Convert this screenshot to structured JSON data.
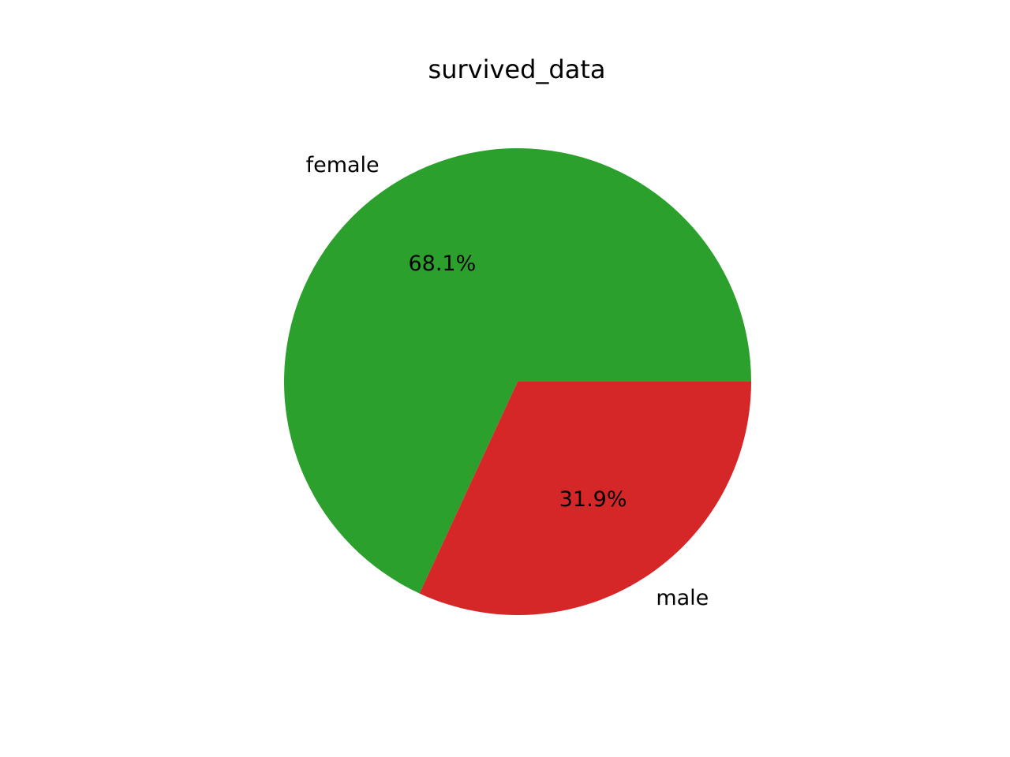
{
  "chart_data": {
    "type": "pie",
    "title": "survived_data",
    "slices": [
      {
        "label": "female",
        "value": 68.1,
        "pct_text": "68.1%",
        "color": "#2ca02c"
      },
      {
        "label": "male",
        "value": 31.9,
        "pct_text": "31.9%",
        "color": "#d62728"
      }
    ],
    "start_angle_deg": 0,
    "direction": "counterclockwise",
    "legend": "none"
  }
}
